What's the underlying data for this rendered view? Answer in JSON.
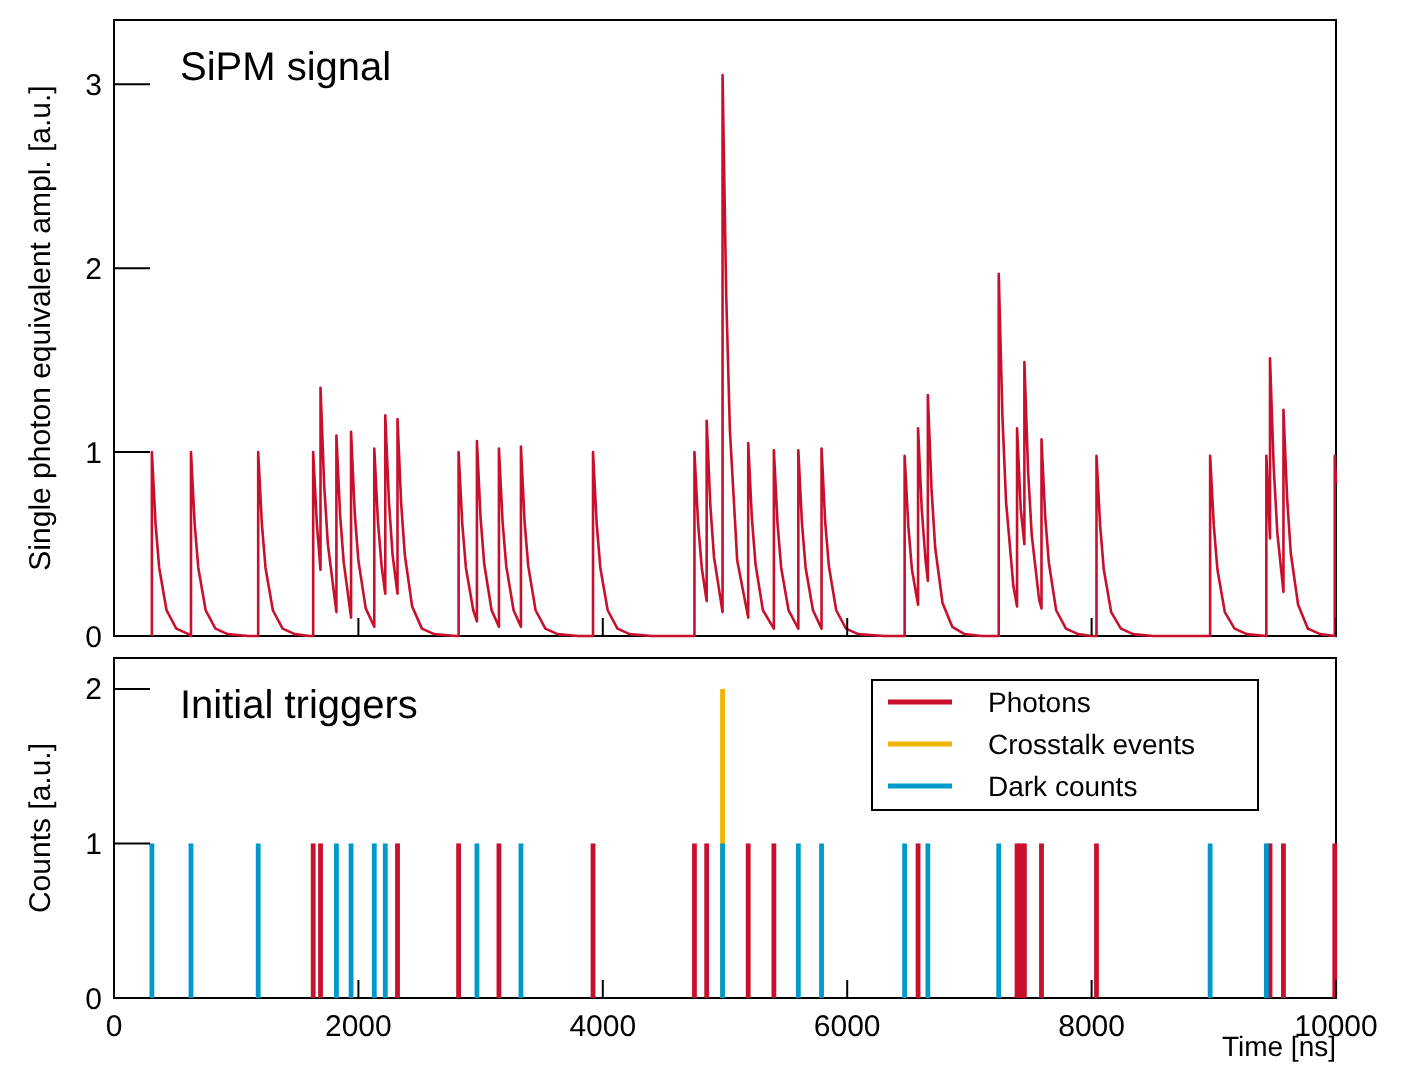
{
  "chart_data": [
    {
      "type": "line",
      "title": "SiPM signal",
      "ylabel": "Single photon equivalent ampl. [a.u.]",
      "xlim": [
        0,
        10000
      ],
      "xticks": [
        0,
        2000,
        4000,
        6000,
        8000,
        10000
      ],
      "ylim": [
        0,
        3.35
      ],
      "yticks": [
        0,
        1,
        2,
        3
      ],
      "tick_labels": "y",
      "grid": false,
      "legend": false,
      "line_style": "solid",
      "series": [
        {
          "color": "#c8102e",
          "x": [
            310,
            310,
            340,
            370,
            430,
            510,
            610,
            630,
            630,
            660,
            690,
            750,
            830,
            930,
            1100,
            1180,
            1180,
            1210,
            1240,
            1300,
            1380,
            1480,
            1600,
            1630,
            1630,
            1660,
            1690,
            1690,
            1720,
            1750,
            1820,
            1820,
            1850,
            1880,
            1940,
            1940,
            1970,
            2000,
            2060,
            2130,
            2130,
            2160,
            2190,
            2220,
            2220,
            2250,
            2280,
            2320,
            2320,
            2350,
            2380,
            2440,
            2520,
            2620,
            2800,
            2820,
            2820,
            2850,
            2880,
            2940,
            2970,
            2970,
            3000,
            3030,
            3090,
            3150,
            3150,
            3180,
            3210,
            3270,
            3330,
            3330,
            3360,
            3390,
            3450,
            3530,
            3630,
            3800,
            3920,
            3920,
            3950,
            3980,
            4040,
            4120,
            4220,
            4400,
            4750,
            4750,
            4780,
            4810,
            4850,
            4850,
            4880,
            4910,
            4980,
            4980,
            5010,
            5040,
            5100,
            5190,
            5190,
            5220,
            5250,
            5310,
            5400,
            5400,
            5430,
            5460,
            5520,
            5600,
            5600,
            5630,
            5660,
            5720,
            5790,
            5790,
            5820,
            5850,
            5910,
            5990,
            6090,
            6300,
            6470,
            6470,
            6500,
            6530,
            6580,
            6580,
            6610,
            6640,
            6660,
            6660,
            6690,
            6720,
            6780,
            6860,
            6960,
            7100,
            7240,
            7240,
            7270,
            7300,
            7360,
            7390,
            7390,
            7420,
            7450,
            7450,
            7480,
            7510,
            7570,
            7590,
            7590,
            7620,
            7650,
            7710,
            7790,
            7890,
            8000,
            8040,
            8040,
            8070,
            8100,
            8160,
            8240,
            8340,
            8500,
            8970,
            8970,
            9000,
            9030,
            9090,
            9170,
            9270,
            9430,
            9430,
            9460,
            9460,
            9490,
            9520,
            9570,
            9570,
            9600,
            9630,
            9690,
            9770,
            9870,
            9990,
            9990,
            10000
          ],
          "values": [
            0,
            1,
            0.61,
            0.37,
            0.14,
            0.04,
            0.01,
            0,
            1,
            0.61,
            0.37,
            0.14,
            0.04,
            0.01,
            0,
            0,
            1,
            0.61,
            0.37,
            0.14,
            0.04,
            0.01,
            0,
            0,
            1,
            0.61,
            0.36,
            1.35,
            0.82,
            0.5,
            0.13,
            1.09,
            0.66,
            0.4,
            0.1,
            1.11,
            0.67,
            0.41,
            0.15,
            0.05,
            1.02,
            0.62,
            0.38,
            0.23,
            1.2,
            0.73,
            0.44,
            0.23,
            1.18,
            0.72,
            0.44,
            0.16,
            0.04,
            0.01,
            0,
            0,
            1,
            0.61,
            0.37,
            0.14,
            0.08,
            1.06,
            0.64,
            0.39,
            0.14,
            0.05,
            1.02,
            0.62,
            0.38,
            0.14,
            0.05,
            1.03,
            0.62,
            0.38,
            0.14,
            0.04,
            0.01,
            0,
            0,
            1,
            0.61,
            0.37,
            0.14,
            0.04,
            0.01,
            0,
            0,
            1,
            0.61,
            0.37,
            0.19,
            1.17,
            0.71,
            0.43,
            0.13,
            3.05,
            1.85,
            1.12,
            0.41,
            0.1,
            1.05,
            0.64,
            0.39,
            0.14,
            0.04,
            1.01,
            0.61,
            0.37,
            0.14,
            0.04,
            1.01,
            0.61,
            0.37,
            0.14,
            0.04,
            1.02,
            0.62,
            0.38,
            0.14,
            0.04,
            0.01,
            0,
            0,
            0.98,
            0.6,
            0.36,
            0.17,
            1.13,
            0.69,
            0.42,
            0.3,
            1.31,
            0.8,
            0.48,
            0.18,
            0.05,
            0.01,
            0,
            0,
            1.97,
            1.2,
            0.73,
            0.27,
            0.16,
            1.13,
            0.69,
            0.5,
            1.49,
            0.9,
            0.55,
            0.2,
            0.15,
            1.07,
            0.65,
            0.4,
            0.14,
            0.04,
            0.01,
            0,
            0,
            0.98,
            0.6,
            0.36,
            0.13,
            0.04,
            0.01,
            0,
            0,
            0.98,
            0.6,
            0.36,
            0.13,
            0.04,
            0.01,
            0,
            0.98,
            0.53,
            1.51,
            0.92,
            0.56,
            0.24,
            1.23,
            0.75,
            0.45,
            0.17,
            0.04,
            0.01,
            0,
            0.98,
            0.83
          ]
        }
      ]
    },
    {
      "type": "bar",
      "title": "Initial triggers",
      "xlabel": "Time [ns]",
      "ylabel": "Counts [a.u.]",
      "xlim": [
        0,
        10000
      ],
      "xticks": [
        0,
        2000,
        4000,
        6000,
        8000,
        10000
      ],
      "ylim": [
        0,
        2.2
      ],
      "yticks": [
        0,
        1,
        2
      ],
      "grid": false,
      "legend": "top right",
      "series": [
        {
          "name": "Photons",
          "color": "#c8102e",
          "x": [
            1630,
            1690,
            2320,
            2820,
            3150,
            3920,
            4750,
            4850,
            5190,
            5400,
            6580,
            7390,
            7420,
            7450,
            7590,
            8040,
            9460,
            9570,
            9990
          ],
          "values": [
            1,
            1,
            1,
            1,
            1,
            1,
            1,
            1,
            1,
            1,
            1,
            1,
            1,
            1,
            1,
            1,
            1,
            1,
            1
          ]
        },
        {
          "name": "Crosstalk events",
          "color": "#f0b400",
          "x": [
            4980
          ],
          "values": [
            2
          ]
        },
        {
          "name": "Dark counts",
          "color": "#0099cc",
          "x": [
            310,
            630,
            1180,
            1820,
            1940,
            2130,
            2220,
            2970,
            3330,
            4980,
            5600,
            5790,
            6470,
            6660,
            7240,
            8970,
            9430
          ],
          "values": [
            1,
            1,
            1,
            1,
            1,
            1,
            1,
            1,
            1,
            1,
            1,
            1,
            1,
            1,
            1,
            1,
            1
          ]
        }
      ]
    }
  ]
}
